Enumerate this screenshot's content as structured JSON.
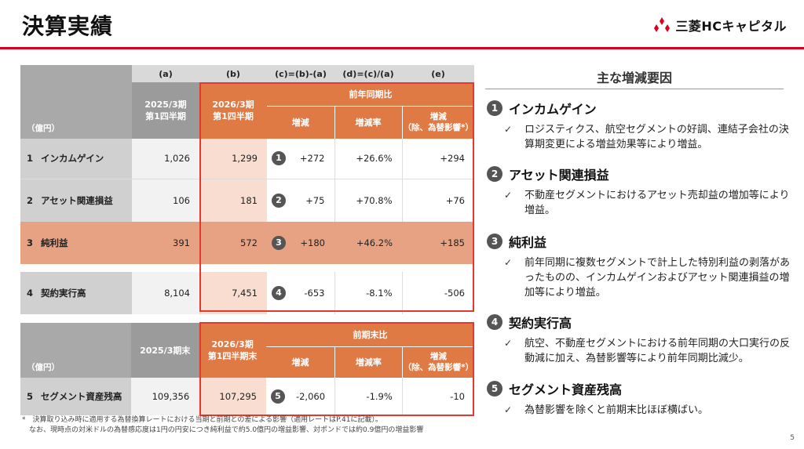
{
  "header": {
    "title": "決算実績",
    "logo_text": "三菱HCキャピタル",
    "brand_color": "#d9001b"
  },
  "table1": {
    "col_letters": [
      "(a)",
      "(b)",
      "(c)=(b)-(a)",
      "(d)=(c)/(a)",
      "(e)"
    ],
    "unit": "（億円）",
    "col_a": "2025/3期\n第1四半期",
    "col_b": "2026/3期\n第1四半期",
    "group": "前年同期比",
    "sub_c": "増減",
    "sub_d": "増減率",
    "sub_e": "増減\n（除、為替影響*）",
    "rows": [
      {
        "idx": "1",
        "label": "インカムゲイン",
        "a": "1,026",
        "b": "1,299",
        "badge": "1",
        "c": "+272",
        "d": "+26.6%",
        "e": "+294"
      },
      {
        "idx": "2",
        "label": "アセット関連損益",
        "a": "106",
        "b": "181",
        "badge": "2",
        "c": "+75",
        "d": "+70.8%",
        "e": "+76"
      },
      {
        "idx": "3",
        "label": "純利益",
        "a": "391",
        "b": "572",
        "badge": "3",
        "c": "+180",
        "d": "+46.2%",
        "e": "+185"
      },
      {
        "idx": "4",
        "label": "契約実行高",
        "a": "8,104",
        "b": "7,451",
        "badge": "4",
        "c": "-653",
        "d": "-8.1%",
        "e": "-506"
      }
    ]
  },
  "table2": {
    "unit": "（億円）",
    "col_a": "2025/3期末",
    "col_b": "2026/3期\n第1四半期末",
    "group": "前期末比",
    "sub_c": "増減",
    "sub_d": "増減率",
    "sub_e": "増減\n（除、為替影響*）",
    "row": {
      "idx": "5",
      "label": "セグメント資産残高",
      "a": "109,356",
      "b": "107,295",
      "badge": "5",
      "c": "-2,060",
      "d": "-1.9%",
      "e": "-10"
    }
  },
  "footnote": {
    "line1": "*　決算取り込み時に適用する為替換算レートにおける当期と前期との差による影響（適用レートはP.41に記載）。",
    "line2": "　なお、現時点の対米ドルの為替感応度は1円の円安につき純利益で約5.0億円の増益影響、対ポンドでは約0.9億円の増益影響"
  },
  "side": {
    "title": "主な増減要因",
    "items": [
      {
        "num": "1",
        "head": "インカムゲイン",
        "body": "ロジスティクス、航空セグメントの好調、連結子会社の決算期変更による増益効果等により増益。"
      },
      {
        "num": "2",
        "head": "アセット関連損益",
        "body": "不動産セグメントにおけるアセット売却益の増加等により増益。"
      },
      {
        "num": "3",
        "head": "純利益",
        "body": "前年同期に複数セグメントで計上した特別利益の剥落があったものの、インカムゲインおよびアセット関連損益の増加等により増益。"
      },
      {
        "num": "4",
        "head": "契約実行高",
        "body": "航空、不動産セグメントにおける前年同期の大口実行の反動減に加え、為替影響等により前年同期比減少。"
      },
      {
        "num": "5",
        "head": "セグメント資産残高",
        "body": "為替影響を除くと前期末比ほぼ横ばい。"
      }
    ]
  },
  "page_number": "5"
}
